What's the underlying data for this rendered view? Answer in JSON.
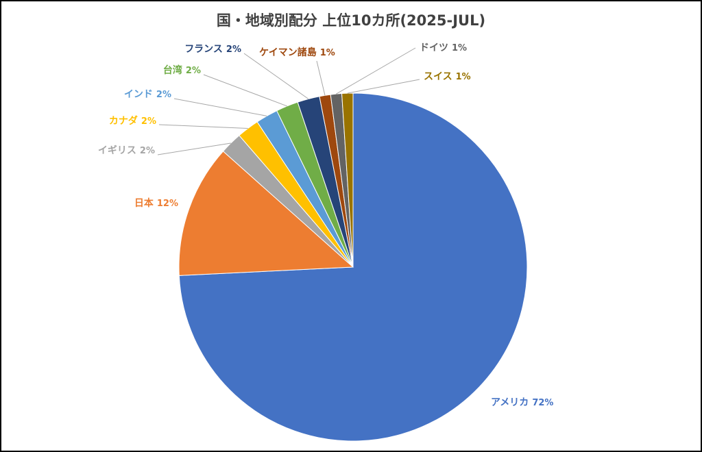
{
  "chart_data": {
    "type": "pie",
    "title": "国・地域別配分 上位10カ所(2025-JUL)",
    "categories": [
      "アメリカ",
      "日本",
      "イギリス",
      "カナダ",
      "インド",
      "台湾",
      "フランス",
      "ケイマン諸島",
      "ドイツ",
      "スイス"
    ],
    "values": [
      72,
      12,
      2,
      2,
      2,
      2,
      2,
      1,
      1,
      1
    ],
    "value_labels": [
      "72%",
      "12%",
      "2%",
      "2%",
      "2%",
      "2%",
      "2%",
      "1%",
      "1%",
      "1%"
    ],
    "colors": [
      "#4472c4",
      "#ed7d31",
      "#a5a5a5",
      "#ffc000",
      "#5b9bd5",
      "#70ad47",
      "#264478",
      "#9e480e",
      "#636363",
      "#997300"
    ]
  }
}
